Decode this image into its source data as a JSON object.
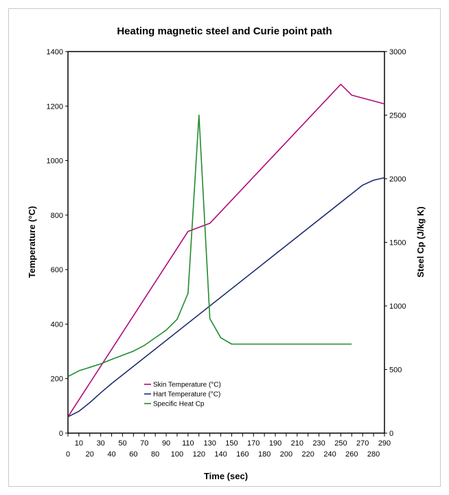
{
  "chart_data": {
    "type": "line",
    "title": "Heating magnetic steel and Curie point path",
    "xlabel": "Time (sec)",
    "ylabel_left": "Temperature (°C)",
    "ylabel_right": "Steel Cp (J/kg K)",
    "xlim": [
      0,
      290
    ],
    "ylim_left": [
      0,
      1400
    ],
    "ylim_right": [
      0,
      3000
    ],
    "x_ticks_top_row": [
      "10",
      "30",
      "50",
      "70",
      "90",
      "110",
      "130",
      "150",
      "170",
      "190",
      "210",
      "230",
      "250",
      "270",
      "290"
    ],
    "x_ticks_bottom_row": [
      "0",
      "20",
      "40",
      "60",
      "80",
      "100",
      "120",
      "140",
      "160",
      "180",
      "200",
      "220",
      "240",
      "260",
      "280"
    ],
    "y_ticks_left": [
      "0",
      "200",
      "400",
      "600",
      "800",
      "1000",
      "1200",
      "1400"
    ],
    "y_ticks_right": [
      "0",
      "500",
      "1000",
      "1500",
      "2000",
      "2500",
      "3000"
    ],
    "legend_position": "lower-left inside",
    "series": [
      {
        "name": "Skin Temperature (°C)",
        "color": "#b0087a",
        "axis": "left",
        "points": [
          [
            0,
            60
          ],
          [
            110,
            740
          ],
          [
            130,
            770
          ],
          [
            250,
            1280
          ],
          [
            260,
            1240
          ],
          [
            290,
            1208
          ]
        ]
      },
      {
        "name": "Hart Temperature (°C)",
        "color": "#1c2a6b",
        "axis": "left",
        "points": [
          [
            0,
            60
          ],
          [
            10,
            80
          ],
          [
            20,
            112
          ],
          [
            30,
            148
          ],
          [
            40,
            182
          ],
          [
            270,
            910
          ],
          [
            280,
            928
          ],
          [
            290,
            937
          ]
        ]
      },
      {
        "name": "Specific Heat Cp",
        "color": "#1f8b2c",
        "axis": "right",
        "points": [
          [
            0,
            445
          ],
          [
            10,
            490
          ],
          [
            30,
            545
          ],
          [
            40,
            580
          ],
          [
            60,
            645
          ],
          [
            70,
            690
          ],
          [
            90,
            810
          ],
          [
            100,
            895
          ],
          [
            110,
            1100
          ],
          [
            120,
            2500
          ],
          [
            130,
            900
          ],
          [
            140,
            750
          ],
          [
            150,
            700
          ],
          [
            260,
            700
          ]
        ]
      }
    ]
  }
}
